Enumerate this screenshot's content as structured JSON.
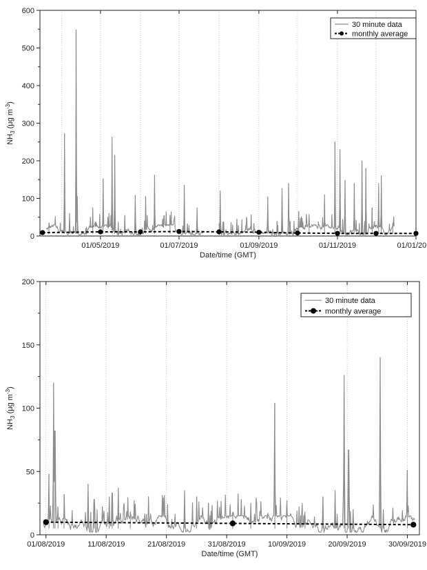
{
  "chart_data": [
    {
      "type": "line",
      "xlabel": "Date/time (GMT)",
      "ylabel": "NH3 (μg m-3)",
      "ylabel_parts": {
        "base": "NH",
        "sub": "3",
        "mid": " (μg m",
        "sup": "-3",
        "end": ")"
      },
      "ylim": [
        0,
        600
      ],
      "xlim": [
        "2019-03-15",
        "2020-01-01"
      ],
      "yticks": [
        0,
        100,
        200,
        300,
        400,
        500,
        600
      ],
      "xticks": [
        {
          "date": "2019-05-01",
          "label": "01/05/2019"
        },
        {
          "date": "2019-07-01",
          "label": "01/07/2019"
        },
        {
          "date": "2019-09-01",
          "label": "01/09/2019"
        },
        {
          "date": "2019-11-01",
          "label": "01/11/2019"
        },
        {
          "date": "2020-01-01",
          "label": "01/01/2020"
        }
      ],
      "monthly_gridlines": [
        "2019-04-01",
        "2019-05-01",
        "2019-06-01",
        "2019-07-01",
        "2019-08-01",
        "2019-09-01",
        "2019-10-01",
        "2019-11-01",
        "2019-12-01",
        "2020-01-01"
      ],
      "grid": "vertical dotted",
      "legend_position": "top-right",
      "series": [
        {
          "name": "30 minute data",
          "style": "solid line",
          "color": "#8c8c8c",
          "data_gaps": [
            [
              "2019-07-20",
              "2019-08-01"
            ]
          ],
          "peaks": [
            {
              "date": "2019-03-22",
              "value": 35
            },
            {
              "date": "2019-04-03",
              "value": 272
            },
            {
              "date": "2019-04-07",
              "value": 60
            },
            {
              "date": "2019-04-12",
              "value": 548
            },
            {
              "date": "2019-04-13",
              "value": 105
            },
            {
              "date": "2019-04-25",
              "value": 75
            },
            {
              "date": "2019-05-03",
              "value": 152
            },
            {
              "date": "2019-05-10",
              "value": 263
            },
            {
              "date": "2019-05-12",
              "value": 215
            },
            {
              "date": "2019-05-20",
              "value": 55
            },
            {
              "date": "2019-05-28",
              "value": 108
            },
            {
              "date": "2019-06-05",
              "value": 105
            },
            {
              "date": "2019-06-12",
              "value": 162
            },
            {
              "date": "2019-06-24",
              "value": 55
            },
            {
              "date": "2019-07-05",
              "value": 135
            },
            {
              "date": "2019-07-15",
              "value": 75
            },
            {
              "date": "2019-08-02",
              "value": 120
            },
            {
              "date": "2019-08-15",
              "value": 45
            },
            {
              "date": "2019-08-28",
              "value": 30
            },
            {
              "date": "2019-09-08",
              "value": 104
            },
            {
              "date": "2019-09-19",
              "value": 126
            },
            {
              "date": "2019-09-24",
              "value": 140
            },
            {
              "date": "2019-10-02",
              "value": 65
            },
            {
              "date": "2019-10-10",
              "value": 40
            },
            {
              "date": "2019-10-22",
              "value": 110
            },
            {
              "date": "2019-10-30",
              "value": 250
            },
            {
              "date": "2019-11-03",
              "value": 230
            },
            {
              "date": "2019-11-07",
              "value": 148
            },
            {
              "date": "2019-11-14",
              "value": 140
            },
            {
              "date": "2019-11-20",
              "value": 200
            },
            {
              "date": "2019-11-23",
              "value": 180
            },
            {
              "date": "2019-11-28",
              "value": 75
            },
            {
              "date": "2019-12-03",
              "value": 140
            },
            {
              "date": "2019-12-05",
              "value": 160
            },
            {
              "date": "2019-12-14",
              "value": 35
            }
          ],
          "baseline_range": [
            3,
            30
          ]
        },
        {
          "name": "monthly average",
          "style": "dashed line with circle markers",
          "color": "#000000",
          "x": [
            "2019-03-17",
            "2019-05-01",
            "2019-06-01",
            "2019-07-01",
            "2019-08-01",
            "2019-09-01",
            "2019-10-01",
            "2019-11-01",
            "2019-12-01",
            "2020-01-01"
          ],
          "y": [
            9,
            11,
            11,
            12,
            11,
            10,
            8,
            7,
            7,
            7
          ]
        }
      ]
    },
    {
      "type": "line",
      "xlabel": "Date/time (GMT)",
      "ylabel": "NH3 (μg m-3)",
      "ylabel_parts": {
        "base": "NH",
        "sub": "3",
        "mid": " (μg m",
        "sup": "-3",
        "end": ")"
      },
      "ylim": [
        0,
        200
      ],
      "xlim": [
        "2019-07-31",
        "2019-10-02"
      ],
      "yticks": [
        0,
        50,
        100,
        150,
        200
      ],
      "xticks": [
        {
          "date": "2019-08-01",
          "label": "01/08/2019"
        },
        {
          "date": "2019-08-11",
          "label": "11/08/2019"
        },
        {
          "date": "2019-08-21",
          "label": "21/08/2019"
        },
        {
          "date": "2019-08-31",
          "label": "31/08/2019"
        },
        {
          "date": "2019-09-10",
          "label": "10/09/2019"
        },
        {
          "date": "2019-09-20",
          "label": "20/09/2019"
        },
        {
          "date": "2019-09-30",
          "label": "30/09/2019"
        }
      ],
      "grid": "vertical dotted",
      "legend_position": "top-right",
      "series": [
        {
          "name": "30 minute data",
          "style": "solid line",
          "color": "#8c8c8c",
          "peaks": [
            {
              "date": "2019-08-01T12",
              "value": 48
            },
            {
              "date": "2019-08-02T06",
              "value": 120
            },
            {
              "date": "2019-08-02T12",
              "value": 82
            },
            {
              "date": "2019-08-03",
              "value": 22
            },
            {
              "date": "2019-08-04",
              "value": 32
            },
            {
              "date": "2019-08-08",
              "value": 40
            },
            {
              "date": "2019-08-09",
              "value": 28
            },
            {
              "date": "2019-08-11T12",
              "value": 30
            },
            {
              "date": "2019-08-12",
              "value": 33
            },
            {
              "date": "2019-08-13",
              "value": 37
            },
            {
              "date": "2019-08-15",
              "value": 18
            },
            {
              "date": "2019-08-24",
              "value": 35
            },
            {
              "date": "2019-08-26",
              "value": 30
            },
            {
              "date": "2019-08-28",
              "value": 25
            },
            {
              "date": "2019-09-01",
              "value": 18
            },
            {
              "date": "2019-09-04",
              "value": 25
            },
            {
              "date": "2019-09-08",
              "value": 104
            },
            {
              "date": "2019-09-10",
              "value": 27
            },
            {
              "date": "2019-09-13",
              "value": 18
            },
            {
              "date": "2019-09-16",
              "value": 30
            },
            {
              "date": "2019-09-18",
              "value": 35
            },
            {
              "date": "2019-09-19T12",
              "value": 126
            },
            {
              "date": "2019-09-20T06",
              "value": 67
            },
            {
              "date": "2019-09-21",
              "value": 20
            },
            {
              "date": "2019-09-25T12",
              "value": 140
            },
            {
              "date": "2019-09-26",
              "value": 20
            },
            {
              "date": "2019-09-30",
              "value": 51
            }
          ],
          "baseline_range": [
            2,
            15
          ]
        },
        {
          "name": "monthly average",
          "style": "dashed line with circle markers",
          "color": "#000000",
          "x": [
            "2019-08-01",
            "2019-09-01",
            "2019-10-01"
          ],
          "y": [
            10,
            9,
            8
          ]
        }
      ]
    }
  ]
}
